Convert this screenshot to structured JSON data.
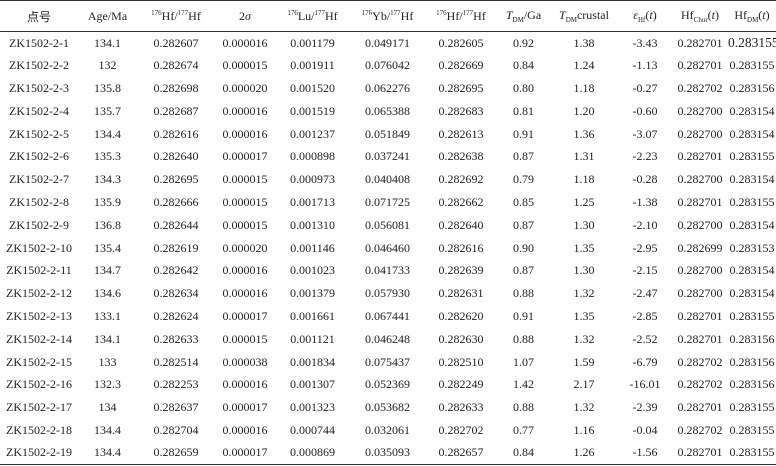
{
  "table": {
    "header": [
      [
        {
          "text": "点号"
        }
      ],
      [
        {
          "text": "Age/Ma"
        }
      ],
      [
        {
          "text": "176",
          "format": "sup"
        },
        {
          "text": "Hf/"
        },
        {
          "text": "177",
          "format": "sup"
        },
        {
          "text": "Hf"
        }
      ],
      [
        {
          "text": "2"
        },
        {
          "text": "σ",
          "format": "i"
        }
      ],
      [
        {
          "text": "176",
          "format": "sup"
        },
        {
          "text": "Lu/"
        },
        {
          "text": "177",
          "format": "sup"
        },
        {
          "text": "Hf"
        }
      ],
      [
        {
          "text": "176",
          "format": "sup"
        },
        {
          "text": "Yb/"
        },
        {
          "text": "177",
          "format": "sup"
        },
        {
          "text": "Hf"
        }
      ],
      [
        {
          "text": "176",
          "format": "sup"
        },
        {
          "text": "Hf/"
        },
        {
          "text": "177",
          "format": "sup"
        },
        {
          "text": "Hf"
        }
      ],
      [
        {
          "text": "T",
          "format": "i"
        },
        {
          "text": "DM",
          "format": "sub"
        },
        {
          "text": "/Ga"
        }
      ],
      [
        {
          "text": "T",
          "format": "i"
        },
        {
          "text": "DM",
          "format": "sub"
        },
        {
          "text": "crustal"
        }
      ],
      [
        {
          "text": "ε",
          "format": "i"
        },
        {
          "text": "Hf",
          "format": "sub"
        },
        {
          "text": "("
        },
        {
          "text": "t",
          "format": "i"
        },
        {
          "text": ")"
        }
      ],
      [
        {
          "text": "Hf"
        },
        {
          "text": "Chur",
          "format": "sub"
        },
        {
          "text": "("
        },
        {
          "text": "t",
          "format": "i"
        },
        {
          "text": ")"
        }
      ],
      [
        {
          "text": "Hf"
        },
        {
          "text": "DM",
          "format": "sub"
        },
        {
          "text": "("
        },
        {
          "text": "t",
          "format": "i"
        },
        {
          "text": ")"
        }
      ]
    ],
    "rows": [
      [
        "ZK1502-2-1",
        "134.1",
        "0.282607",
        "0.000016",
        "0.001179",
        "0.049171",
        "0.282605",
        "0.92",
        "1.38",
        "-3.43",
        "0.282701",
        "0.283155"
      ],
      [
        "ZK1502-2-2",
        "132",
        "0.282674",
        "0.000015",
        "0.001911",
        "0.076042",
        "0.282669",
        "0.84",
        "1.24",
        "-1.13",
        "0.282701",
        "0.283155"
      ],
      [
        "ZK1502-2-3",
        "135.8",
        "0.282698",
        "0.000020",
        "0.001520",
        "0.062276",
        "0.282695",
        "0.80",
        "1.18",
        "-0.27",
        "0.282702",
        "0.283156"
      ],
      [
        "ZK1502-2-4",
        "135.7",
        "0.282687",
        "0.000016",
        "0.001519",
        "0.065388",
        "0.282683",
        "0.81",
        "1.20",
        "-0.60",
        "0.282700",
        "0.283154"
      ],
      [
        "ZK1502-2-5",
        "134.4",
        "0.282616",
        "0.000016",
        "0.001237",
        "0.051849",
        "0.282613",
        "0.91",
        "1.36",
        "-3.07",
        "0.282700",
        "0.283154"
      ],
      [
        "ZK1502-2-6",
        "135.3",
        "0.282640",
        "0.000017",
        "0.000898",
        "0.037241",
        "0.282638",
        "0.87",
        "1.31",
        "-2.23",
        "0.282701",
        "0.283155"
      ],
      [
        "ZK1502-2-7",
        "134.3",
        "0.282695",
        "0.000015",
        "0.000973",
        "0.040408",
        "0.282692",
        "0.79",
        "1.18",
        "-0.28",
        "0.282700",
        "0.283154"
      ],
      [
        "ZK1502-2-8",
        "135.9",
        "0.282666",
        "0.000015",
        "0.001713",
        "0.071725",
        "0.282662",
        "0.85",
        "1.25",
        "-1.38",
        "0.282701",
        "0.283155"
      ],
      [
        "ZK1502-2-9",
        "136.8",
        "0.282644",
        "0.000015",
        "0.001310",
        "0.056081",
        "0.282640",
        "0.87",
        "1.30",
        "-2.10",
        "0.282700",
        "0.283154"
      ],
      [
        "ZK1502-2-10",
        "135.4",
        "0.282619",
        "0.000020",
        "0.001146",
        "0.046460",
        "0.282616",
        "0.90",
        "1.35",
        "-2.95",
        "0.282699",
        "0.283153"
      ],
      [
        "ZK1502-2-11",
        "134.7",
        "0.282642",
        "0.000016",
        "0.001023",
        "0.041733",
        "0.282639",
        "0.87",
        "1.30",
        "-2.15",
        "0.282700",
        "0.283154"
      ],
      [
        "ZK1502-2-12",
        "134.6",
        "0.282634",
        "0.000016",
        "0.001379",
        "0.057930",
        "0.282631",
        "0.88",
        "1.32",
        "-2.47",
        "0.282700",
        "0.283154"
      ],
      [
        "ZK1502-2-13",
        "133.1",
        "0.282624",
        "0.000017",
        "0.001661",
        "0.067441",
        "0.282620",
        "0.91",
        "1.35",
        "-2.85",
        "0.282701",
        "0.283155"
      ],
      [
        "ZK1502-2-14",
        "134.1",
        "0.282633",
        "0.000015",
        "0.001121",
        "0.046248",
        "0.282630",
        "0.88",
        "1.32",
        "-2.52",
        "0.282701",
        "0.283156"
      ],
      [
        "ZK1502-2-15",
        "133",
        "0.282514",
        "0.000038",
        "0.001834",
        "0.075437",
        "0.282510",
        "1.07",
        "1.59",
        "-6.79",
        "0.282702",
        "0.283156"
      ],
      [
        "ZK1502-2-16",
        "132.3",
        "0.282253",
        "0.000016",
        "0.001307",
        "0.052369",
        "0.282249",
        "1.42",
        "2.17",
        "-16.01",
        "0.282702",
        "0.283156"
      ],
      [
        "ZK1502-2-17",
        "134",
        "0.282637",
        "0.000017",
        "0.001323",
        "0.053682",
        "0.282633",
        "0.88",
        "1.32",
        "-2.39",
        "0.282701",
        "0.283155"
      ],
      [
        "ZK1502-2-18",
        "134.4",
        "0.282704",
        "0.000016",
        "0.000744",
        "0.032061",
        "0.282702",
        "0.77",
        "1.16",
        "-0.04",
        "0.282702",
        "0.283155"
      ],
      [
        "ZK1502-2-19",
        "134.4",
        "0.282659",
        "0.000017",
        "0.000869",
        "0.035093",
        "0.282657",
        "0.84",
        "1.26",
        "-1.56",
        "0.282701",
        "0.283155"
      ]
    ]
  }
}
